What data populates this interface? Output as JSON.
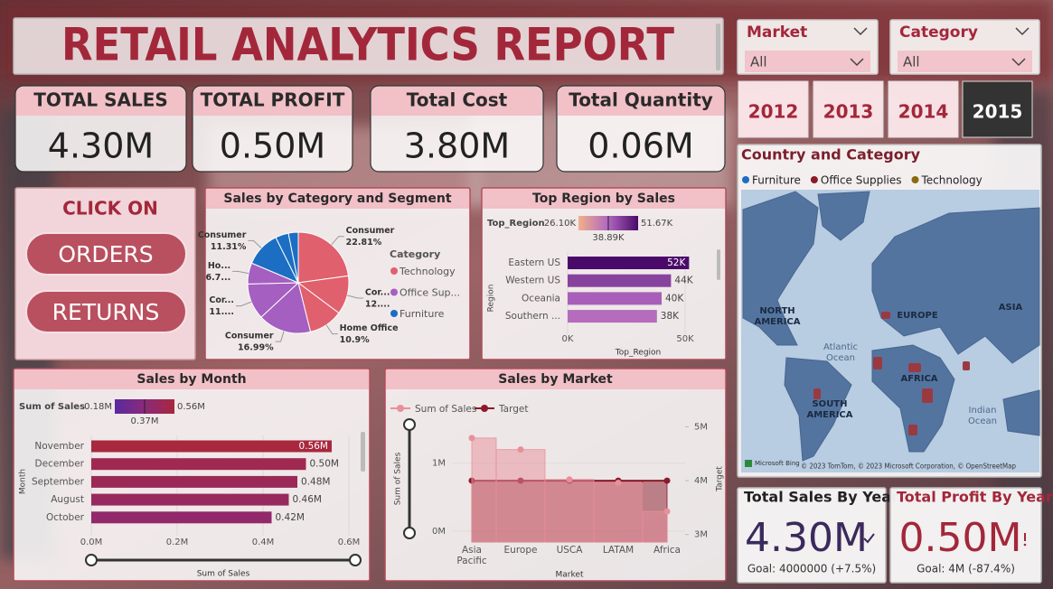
{
  "header": {
    "title": "RETAIL ANALYTICS REPORT"
  },
  "filters": [
    {
      "label": "Market",
      "value": "All"
    },
    {
      "label": "Category",
      "value": "All"
    }
  ],
  "kpis": [
    {
      "label": "TOTAL SALES",
      "value": "4.30M"
    },
    {
      "label": "TOTAL PROFIT",
      "value": "0.50M"
    },
    {
      "label": "Total Cost",
      "value": "3.80M"
    },
    {
      "label": "Total Quantity",
      "value": "0.06M"
    }
  ],
  "navigation": {
    "prompt": "CLICK ON",
    "buttons": [
      "ORDERS",
      "RETURNS"
    ]
  },
  "years": {
    "options": [
      "2012",
      "2013",
      "2014",
      "2015"
    ],
    "selected": "2015"
  },
  "map": {
    "title": "Country and Category",
    "legend": [
      {
        "name": "Furniture",
        "color": "#1b6ec2"
      },
      {
        "name": "Office Supplies",
        "color": "#8b1a2a"
      },
      {
        "name": "Technology",
        "color": "#8a6a10"
      }
    ],
    "labels": [
      "NORTH AMERICA",
      "EUROPE",
      "ASIA",
      "Atlantic Ocean",
      "AFRICA",
      "SOUTH AMERICA",
      "Indian Ocean"
    ],
    "provider": "Microsoft Bing",
    "attribution": "© 2023 TomTom, © 2023 Microsoft Corporation, © OpenStreetMap"
  },
  "cards": [
    {
      "title": "Total Sales By Year",
      "value": "4.30M",
      "goal": "Goal: 4000000 (+7.5%)"
    },
    {
      "title": "Total Profit By Year",
      "value": "0.50M",
      "goal": "Goal: 4M (-87.4%)"
    }
  ],
  "chart_data": [
    {
      "type": "pie",
      "title": "Sales by Category and Segment",
      "categories": [
        "Consumer",
        "Cor...",
        "Home Office",
        "Consumer",
        "Cor...",
        "Ho...",
        "Consumer",
        null,
        null
      ],
      "values": [
        22.81,
        12.4,
        10.9,
        16.99,
        11.5,
        6.75,
        11.31,
        4.2,
        3.14
      ],
      "value_labels": [
        "22.81%",
        "12....",
        "10.9%",
        "16.99%",
        "11....",
        "6.7...",
        "11.31%",
        null,
        null
      ],
      "colors": [
        "#e0606e",
        "#e0606e",
        "#e0606e",
        "#a45fc0",
        "#a45fc0",
        "#a45fc0",
        "#1b6ec2",
        "#1b6ec2",
        "#1b6ec2"
      ],
      "legend": {
        "title": "Category",
        "items": [
          {
            "name": "Technology",
            "color": "#e0606e"
          },
          {
            "name": "Office Sup...",
            "color": "#a45fc0"
          },
          {
            "name": "Furniture",
            "color": "#1b6ec2"
          }
        ]
      }
    },
    {
      "type": "hbar",
      "title": "Top Region by Sales",
      "categories": [
        "Eastern US",
        "Western US",
        "Oceania",
        "Southern ..."
      ],
      "values": [
        51670,
        44000,
        40000,
        38000
      ],
      "value_labels": [
        "52K",
        "44K",
        "40K",
        "38K"
      ],
      "xlim": [
        0,
        60000
      ],
      "xticks": [
        {
          "value": 0,
          "label": "0K"
        },
        {
          "value": 50000,
          "label": "50K"
        }
      ],
      "xlabel": "Top_Region",
      "ylabel": "Region",
      "color_scale": {
        "title": "Top_Region",
        "min": {
          "value": 26100,
          "label": "26.10K"
        },
        "mid": {
          "value": 38890,
          "label": "38.89K"
        },
        "max": {
          "value": 51670,
          "label": "51.67K"
        },
        "colors": [
          "#f2b08a",
          "#b067c0",
          "#4a0a6a"
        ]
      }
    },
    {
      "type": "hbar",
      "title": "Sales by Month",
      "categories": [
        "November",
        "December",
        "September",
        "August",
        "October"
      ],
      "values": [
        560000,
        500000,
        480000,
        460000,
        420000
      ],
      "value_labels": [
        "0.56M",
        "0.50M",
        "0.48M",
        "0.46M",
        "0.42M"
      ],
      "xlim": [
        0,
        600000
      ],
      "xticks": [
        {
          "value": 0,
          "label": "0.0M"
        },
        {
          "value": 200000,
          "label": "0.2M"
        },
        {
          "value": 400000,
          "label": "0.4M"
        },
        {
          "value": 600000,
          "label": "0.6M"
        }
      ],
      "xlabel": "Sum of Sales",
      "ylabel": "Month",
      "color_scale": {
        "title": "Sum of Sales",
        "min": {
          "value": 180000,
          "label": "0.18M"
        },
        "mid": {
          "value": 370000,
          "label": "0.37M"
        },
        "max": {
          "value": 560000,
          "label": "0.56M"
        },
        "colors": [
          "#5a2aa0",
          "#8a2a7a",
          "#a8283e"
        ]
      }
    },
    {
      "type": "combo",
      "title": "Sales by Market",
      "categories": [
        "Asia Pacific",
        "Europe",
        "USCA",
        "LATAM",
        "Africa"
      ],
      "series": [
        {
          "name": "Sum of Sales",
          "color": "#e8909a",
          "style": "step-area",
          "values": [
            1370000,
            1200000,
            760000,
            710000,
            290000
          ]
        },
        {
          "name": "Target",
          "color": "#8b1a2a",
          "style": "line",
          "axis": "y2",
          "values": [
            4000000,
            4000000,
            4000000,
            4000000,
            4000000
          ]
        }
      ],
      "ylim": [
        -160000,
        1700000
      ],
      "yticks": [
        {
          "value": 0,
          "label": "0M"
        },
        {
          "value": 1000000,
          "label": "1M"
        }
      ],
      "y2lim": [
        2860000,
        5210000
      ],
      "y2ticks": [
        {
          "value": 3000000,
          "label": "3M"
        },
        {
          "value": 4000000,
          "label": "4M"
        },
        {
          "value": 5000000,
          "label": "5M"
        }
      ],
      "xlabel": "Market",
      "ylabel": "Sum of Sales",
      "y2label": "Target"
    }
  ]
}
